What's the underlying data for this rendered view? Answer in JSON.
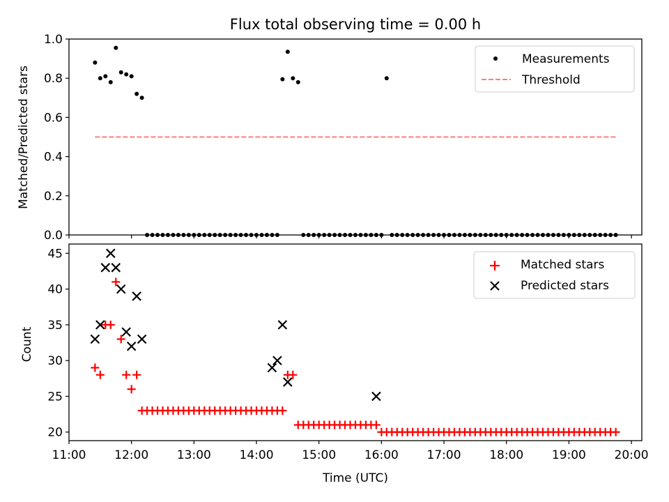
{
  "title": "Flux total observing time = 0.00 h",
  "chart_data": [
    {
      "type": "scatter",
      "title": "Flux total observing time = 0.00 h",
      "xlabel": "",
      "ylabel": "Matched/Predicted stars",
      "xlim": [
        "11:00",
        "20:10"
      ],
      "ylim": [
        0.0,
        1.0
      ],
      "yticks": [
        0.0,
        0.2,
        0.4,
        0.6,
        0.8,
        1.0
      ],
      "ytick_labels": [
        "0.0",
        "0.2",
        "0.4",
        "0.6",
        "0.8",
        "1.0"
      ],
      "legend_position": "top-right",
      "series": [
        {
          "name": "Measurements",
          "kind": "scatter",
          "marker": "dot",
          "color": "#000000",
          "x": [
            "11:25",
            "11:30",
            "11:35",
            "11:40",
            "11:45",
            "11:50",
            "11:55",
            "12:00",
            "12:05",
            "12:10",
            "12:15",
            "12:20",
            "12:25",
            "12:30",
            "12:35",
            "12:40",
            "12:45",
            "12:50",
            "12:55",
            "13:00",
            "13:05",
            "13:10",
            "13:15",
            "13:20",
            "13:25",
            "13:30",
            "13:35",
            "13:40",
            "13:45",
            "13:50",
            "13:55",
            "14:00",
            "14:05",
            "14:10",
            "14:15",
            "14:20",
            "14:25",
            "14:30",
            "14:35",
            "14:40",
            "14:45",
            "14:50",
            "14:55",
            "15:00",
            "15:05",
            "15:10",
            "15:15",
            "15:20",
            "15:25",
            "15:30",
            "15:35",
            "15:40",
            "15:45",
            "15:50",
            "15:55",
            "16:00",
            "16:05",
            "16:10",
            "16:15",
            "16:20",
            "16:25",
            "16:30",
            "16:35",
            "16:40",
            "16:45",
            "16:50",
            "16:55",
            "17:00",
            "17:05",
            "17:10",
            "17:15",
            "17:20",
            "17:25",
            "17:30",
            "17:35",
            "17:40",
            "17:45",
            "17:50",
            "17:55",
            "18:00",
            "18:05",
            "18:10",
            "18:15",
            "18:20",
            "18:25",
            "18:30",
            "18:35",
            "18:40",
            "18:45",
            "18:50",
            "18:55",
            "19:00",
            "19:05",
            "19:10",
            "19:15",
            "19:20",
            "19:25",
            "19:30",
            "19:35",
            "19:40",
            "19:45"
          ],
          "y": [
            0.88,
            0.8,
            0.81,
            0.78,
            0.955,
            0.83,
            0.82,
            0.81,
            0.72,
            0.7,
            0,
            0,
            0,
            0,
            0,
            0,
            0,
            0,
            0,
            0,
            0,
            0,
            0,
            0,
            0,
            0,
            0,
            0,
            0,
            0,
            0,
            0,
            0,
            0,
            0,
            0,
            0.795,
            0.935,
            0.8,
            0.78,
            0,
            0,
            0,
            0,
            0,
            0,
            0,
            0,
            0,
            0,
            0,
            0,
            0,
            0,
            0,
            0,
            0.8,
            0,
            0,
            0,
            0,
            0,
            0,
            0,
            0,
            0,
            0,
            0,
            0,
            0,
            0,
            0,
            0,
            0,
            0,
            0,
            0,
            0,
            0,
            0,
            0,
            0,
            0,
            0,
            0,
            0,
            0,
            0,
            0,
            0,
            0,
            0,
            0,
            0,
            0,
            0,
            0,
            0,
            0,
            0,
            0
          ]
        },
        {
          "name": "Threshold",
          "kind": "line",
          "style": "dashed",
          "color": "#ff7b7b",
          "x": [
            "11:25",
            "19:45"
          ],
          "y": [
            0.5,
            0.5
          ]
        }
      ]
    },
    {
      "type": "scatter",
      "title": "",
      "xlabel": "Time (UTC)",
      "ylabel": "Count",
      "xlim": [
        "11:00",
        "20:10"
      ],
      "ylim": [
        18.8,
        46.3
      ],
      "xticks": [
        "11:00",
        "12:00",
        "13:00",
        "14:00",
        "15:00",
        "16:00",
        "17:00",
        "18:00",
        "19:00",
        "20:00"
      ],
      "yticks": [
        20,
        25,
        30,
        35,
        40,
        45
      ],
      "ytick_labels": [
        "20",
        "25",
        "30",
        "35",
        "40",
        "45"
      ],
      "legend_position": "top-right",
      "series": [
        {
          "name": "Matched stars",
          "kind": "scatter",
          "marker": "plus",
          "color": "#ff0000",
          "x": [
            "11:25",
            "11:30",
            "11:35",
            "11:40",
            "11:45",
            "11:50",
            "11:55",
            "12:00",
            "12:05",
            "12:10",
            "12:15",
            "12:20",
            "12:25",
            "12:30",
            "12:35",
            "12:40",
            "12:45",
            "12:50",
            "12:55",
            "13:00",
            "13:05",
            "13:10",
            "13:15",
            "13:20",
            "13:25",
            "13:30",
            "13:35",
            "13:40",
            "13:45",
            "13:50",
            "13:55",
            "14:00",
            "14:05",
            "14:10",
            "14:15",
            "14:20",
            "14:25",
            "14:30",
            "14:35",
            "14:40",
            "14:45",
            "14:50",
            "14:55",
            "15:00",
            "15:05",
            "15:10",
            "15:15",
            "15:20",
            "15:25",
            "15:30",
            "15:35",
            "15:40",
            "15:45",
            "15:50",
            "15:55",
            "16:00",
            "16:05",
            "16:10",
            "16:15",
            "16:20",
            "16:25",
            "16:30",
            "16:35",
            "16:40",
            "16:45",
            "16:50",
            "16:55",
            "17:00",
            "17:05",
            "17:10",
            "17:15",
            "17:20",
            "17:25",
            "17:30",
            "17:35",
            "17:40",
            "17:45",
            "17:50",
            "17:55",
            "18:00",
            "18:05",
            "18:10",
            "18:15",
            "18:20",
            "18:25",
            "18:30",
            "18:35",
            "18:40",
            "18:45",
            "18:50",
            "18:55",
            "19:00",
            "19:05",
            "19:10",
            "19:15",
            "19:20",
            "19:25",
            "19:30",
            "19:35",
            "19:40",
            "19:45"
          ],
          "y": [
            29,
            28,
            35,
            35,
            41,
            33,
            28,
            26,
            28,
            23,
            23,
            23,
            23,
            23,
            23,
            23,
            23,
            23,
            23,
            23,
            23,
            23,
            23,
            23,
            23,
            23,
            23,
            23,
            23,
            23,
            23,
            23,
            23,
            23,
            23,
            23,
            23,
            28,
            28,
            21,
            21,
            21,
            21,
            21,
            21,
            21,
            21,
            21,
            21,
            21,
            21,
            21,
            21,
            21,
            21,
            20,
            20,
            20,
            20,
            20,
            20,
            20,
            20,
            20,
            20,
            20,
            20,
            20,
            20,
            20,
            20,
            20,
            20,
            20,
            20,
            20,
            20,
            20,
            20,
            20,
            20,
            20,
            20,
            20,
            20,
            20,
            20,
            20,
            20,
            20,
            20,
            20,
            20,
            20,
            20,
            20,
            20,
            20,
            20,
            20,
            20
          ]
        },
        {
          "name": "Predicted stars",
          "kind": "scatter",
          "marker": "x",
          "color": "#000000",
          "x": [
            "11:25",
            "11:30",
            "11:35",
            "11:40",
            "11:45",
            "11:50",
            "11:55",
            "12:00",
            "12:05",
            "12:10",
            "14:15",
            "14:20",
            "14:25",
            "14:30",
            "15:55"
          ],
          "y": [
            33,
            35,
            43,
            45,
            43,
            40,
            34,
            32,
            39,
            33,
            29,
            30,
            35,
            27,
            25
          ]
        }
      ]
    }
  ]
}
